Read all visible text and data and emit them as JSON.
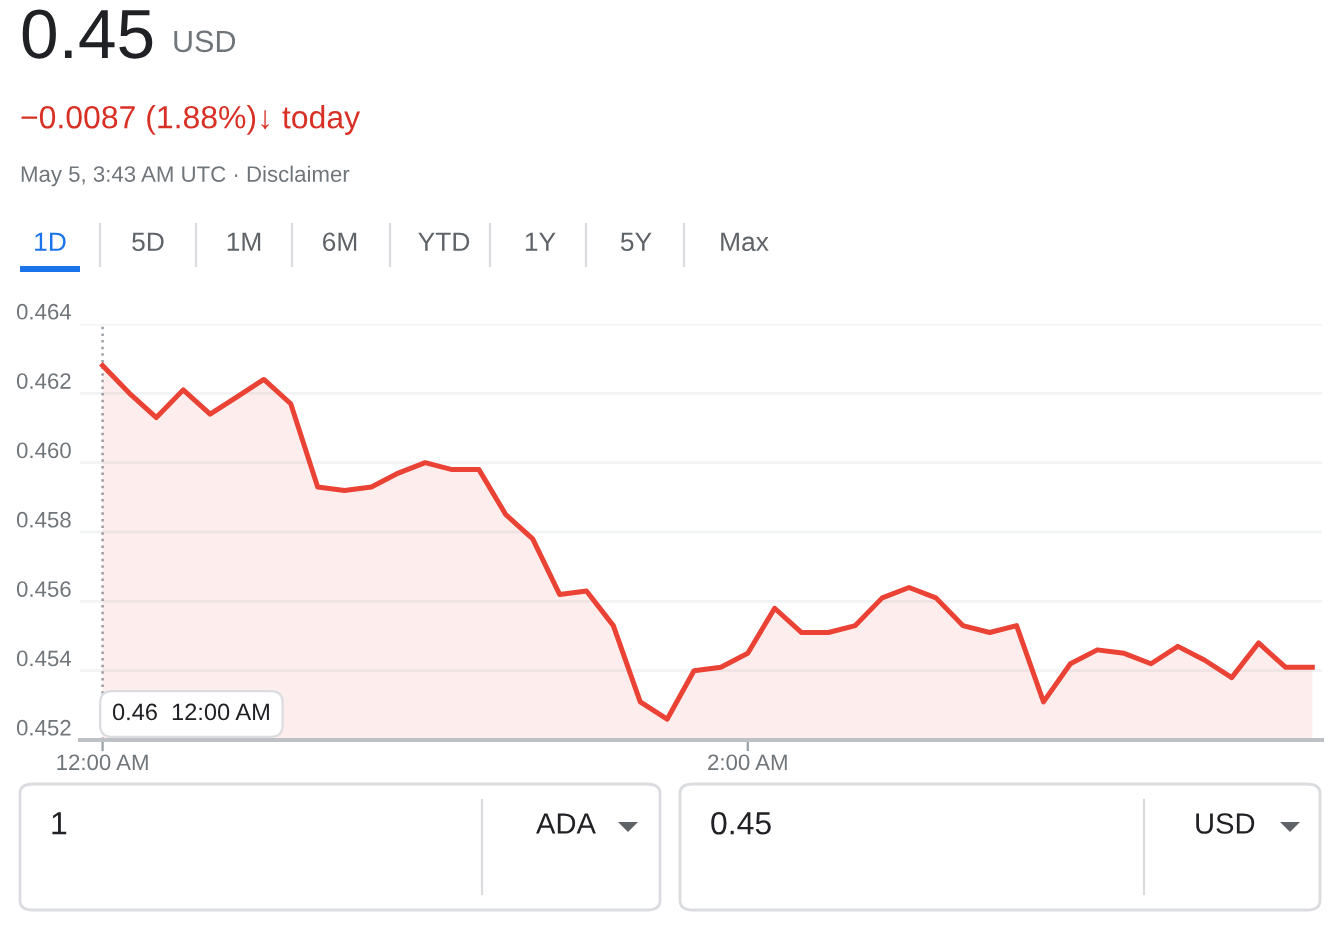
{
  "chart_data": {
    "type": "area",
    "title": "0.45",
    "subtitle": "−0.0087 (1.88%)↓ today",
    "x": [
      0,
      0.0833,
      0.1667,
      0.25,
      0.3333,
      0.4167,
      0.5,
      0.5833,
      0.6667,
      0.75,
      0.8333,
      0.9167,
      1,
      1.0833,
      1.1667,
      1.25,
      1.3333,
      1.4167,
      1.5,
      1.5833,
      1.6667,
      1.75,
      1.8333,
      1.9167,
      2,
      2.0833,
      2.1667,
      2.25,
      2.3333,
      2.4167,
      2.5,
      2.5833,
      2.6667,
      2.75,
      2.8333,
      2.9167,
      3,
      3.0833,
      3.1667,
      3.25,
      3.3333,
      3.4167,
      3.5,
      3.5833,
      3.6667,
      3.75
    ],
    "series": [
      {
        "color": "#ea4335",
        "values": [
          0.4628,
          0.462,
          0.4613,
          0.4621,
          0.4614,
          0.4619,
          0.4624,
          0.4617,
          0.4593,
          0.4592,
          0.4593,
          0.4597,
          0.46,
          0.4598,
          0.4598,
          0.4585,
          0.4578,
          0.4562,
          0.4563,
          0.4553,
          0.4531,
          0.4526,
          0.454,
          0.4541,
          0.4545,
          0.4558,
          0.4551,
          0.4551,
          0.4553,
          0.4561,
          0.4564,
          0.4561,
          0.4553,
          0.4551,
          0.4553,
          0.4531,
          0.4542,
          0.4546,
          0.4545,
          0.4542,
          0.4547,
          0.4543,
          0.4538,
          0.4548,
          0.4541,
          0.4541
        ]
      }
    ],
    "xlim": [
      -0.07,
      3.78
    ],
    "ylim": [
      0.452,
      0.464
    ],
    "xticks": [
      {
        "value": 0,
        "label": "12:00 AM"
      },
      {
        "value": 2,
        "label": "2:00 AM"
      }
    ],
    "yticks": [
      0.452,
      0.454,
      0.456,
      0.458,
      {
        "value": 0.46,
        "label": "0.460"
      },
      0.462,
      0.464
    ],
    "grid": "y",
    "ref_lines": [
      {
        "axis": "x",
        "value": 0,
        "color": "#9aa0a6",
        "line_style": "dotted"
      }
    ],
    "annotations": [
      "0.46  12:00 AM",
      "USD",
      "May 5, 3:43 AM UTC · Disclaimer",
      "1D",
      "5D",
      "1M",
      "6M",
      "YTD",
      "1Y",
      "5Y",
      "Max",
      "1",
      "ADA",
      "0.45",
      "USD"
    ]
  }
}
